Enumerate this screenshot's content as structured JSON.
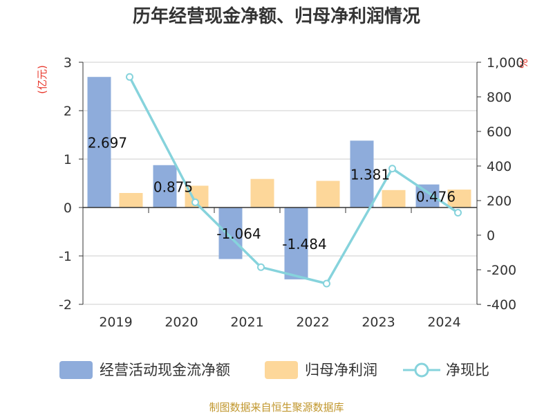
{
  "chart_data": {
    "type": "bar",
    "title": "历年经营现金净额、归母净利润情况",
    "categories": [
      "2019",
      "2020",
      "2021",
      "2022",
      "2023",
      "2024"
    ],
    "series": [
      {
        "name": "经营活动现金流净额",
        "kind": "bar",
        "axis": "left",
        "values": [
          2.697,
          0.875,
          -1.064,
          -1.484,
          1.381,
          0.476
        ],
        "labels": [
          "2.697",
          "0.875",
          "-1.064",
          "-1.484",
          "1.381",
          "0.476"
        ],
        "color": "#8eacdb"
      },
      {
        "name": "归母净利润",
        "kind": "bar",
        "axis": "left",
        "values": [
          0.3,
          0.45,
          0.59,
          0.55,
          0.36,
          0.37
        ],
        "color": "#fdd79a"
      },
      {
        "name": "净现比",
        "kind": "line",
        "axis": "right",
        "values": [
          915,
          190,
          -185,
          -280,
          385,
          130
        ],
        "color": "#86d3dc"
      }
    ],
    "ylabel_left": "(亿元)",
    "ylabel_right": "%",
    "ylim_left": [
      -2,
      3
    ],
    "ylim_right": [
      -400,
      1000
    ],
    "yticks_left": [
      "3",
      "2",
      "1",
      "0",
      "-1",
      "-2"
    ],
    "yticks_right": [
      "1,000",
      "800",
      "600",
      "400",
      "200",
      "0",
      "-200",
      "-400"
    ],
    "grid": true,
    "legend_position": "bottom"
  },
  "source_text": "制图数据来自恒生聚源数据库"
}
